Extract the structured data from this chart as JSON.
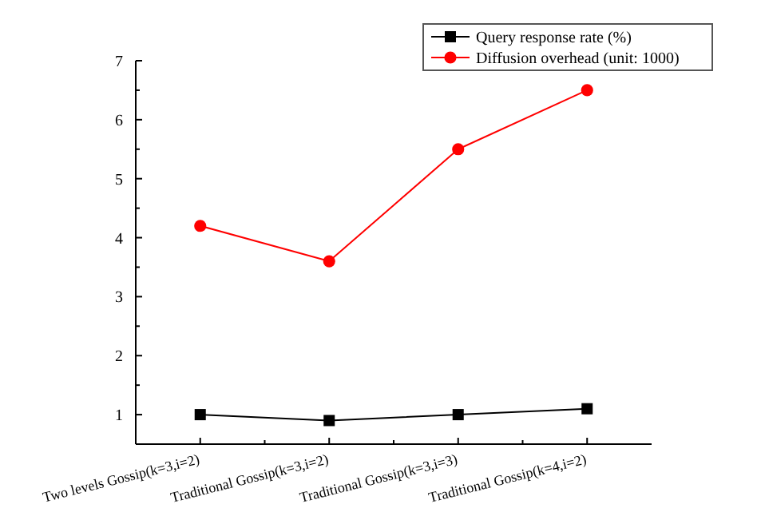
{
  "chart_data": {
    "type": "line",
    "categories": [
      "Two levels Gossip(k=3,i=2)",
      "Traditional Gossip(k=3,i=2)",
      "Traditional Gossip(k=3,i=3)",
      "Traditional Gossip(k=4,i=2)"
    ],
    "series": [
      {
        "name": "Query response rate (%)",
        "color": "#000000",
        "marker": "square",
        "values": [
          1.0,
          0.9,
          1.0,
          1.1
        ]
      },
      {
        "name": "Diffusion overhead (unit: 1000)",
        "color": "#ff0000",
        "marker": "circle",
        "values": [
          4.2,
          3.6,
          5.5,
          6.5
        ]
      }
    ],
    "ylim": [
      0.5,
      7
    ],
    "yticks": [
      1,
      2,
      3,
      4,
      5,
      6,
      7
    ],
    "grid": false,
    "legend": "top right"
  }
}
